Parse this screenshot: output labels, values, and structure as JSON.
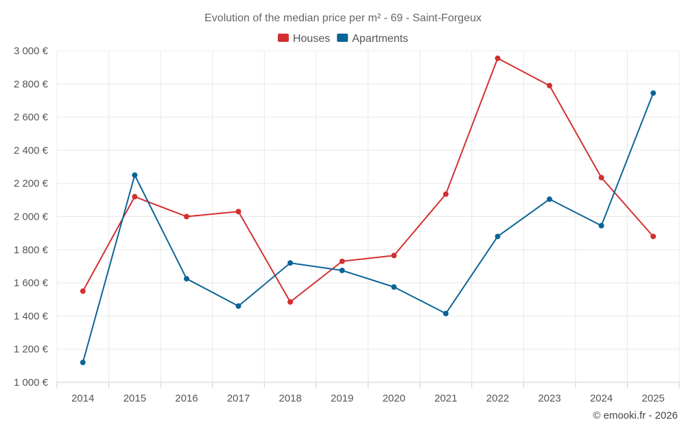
{
  "chart_data": {
    "type": "line",
    "title": "Evolution of the median price per m² - 69 - Saint-Forgeux",
    "categories": [
      "2014",
      "2015",
      "2016",
      "2017",
      "2018",
      "2019",
      "2020",
      "2021",
      "2022",
      "2023",
      "2024",
      "2025"
    ],
    "series": [
      {
        "name": "Houses",
        "color": "#d32f2f",
        "values": [
          1550,
          2120,
          2000,
          2030,
          1485,
          1730,
          1765,
          2135,
          2955,
          2790,
          2235,
          1880
        ]
      },
      {
        "name": "Apartments",
        "color": "#0a6496",
        "values": [
          1120,
          2250,
          1625,
          1460,
          1720,
          1675,
          1575,
          1415,
          1880,
          2105,
          1945,
          2745
        ]
      }
    ],
    "ylim": [
      1000,
      3000
    ],
    "yticks": [
      1000,
      1200,
      1400,
      1600,
      1800,
      2000,
      2200,
      2400,
      2600,
      2800,
      3000
    ],
    "ytick_labels": [
      "1 000 €",
      "1 200 €",
      "1 400 €",
      "1 600 €",
      "1 800 €",
      "2 000 €",
      "2 200 €",
      "2 400 €",
      "2 600 €",
      "2 800 €",
      "3 000 €"
    ],
    "grid": true,
    "legend_position": "top-center"
  },
  "credit": "© emooki.fr - 2026"
}
